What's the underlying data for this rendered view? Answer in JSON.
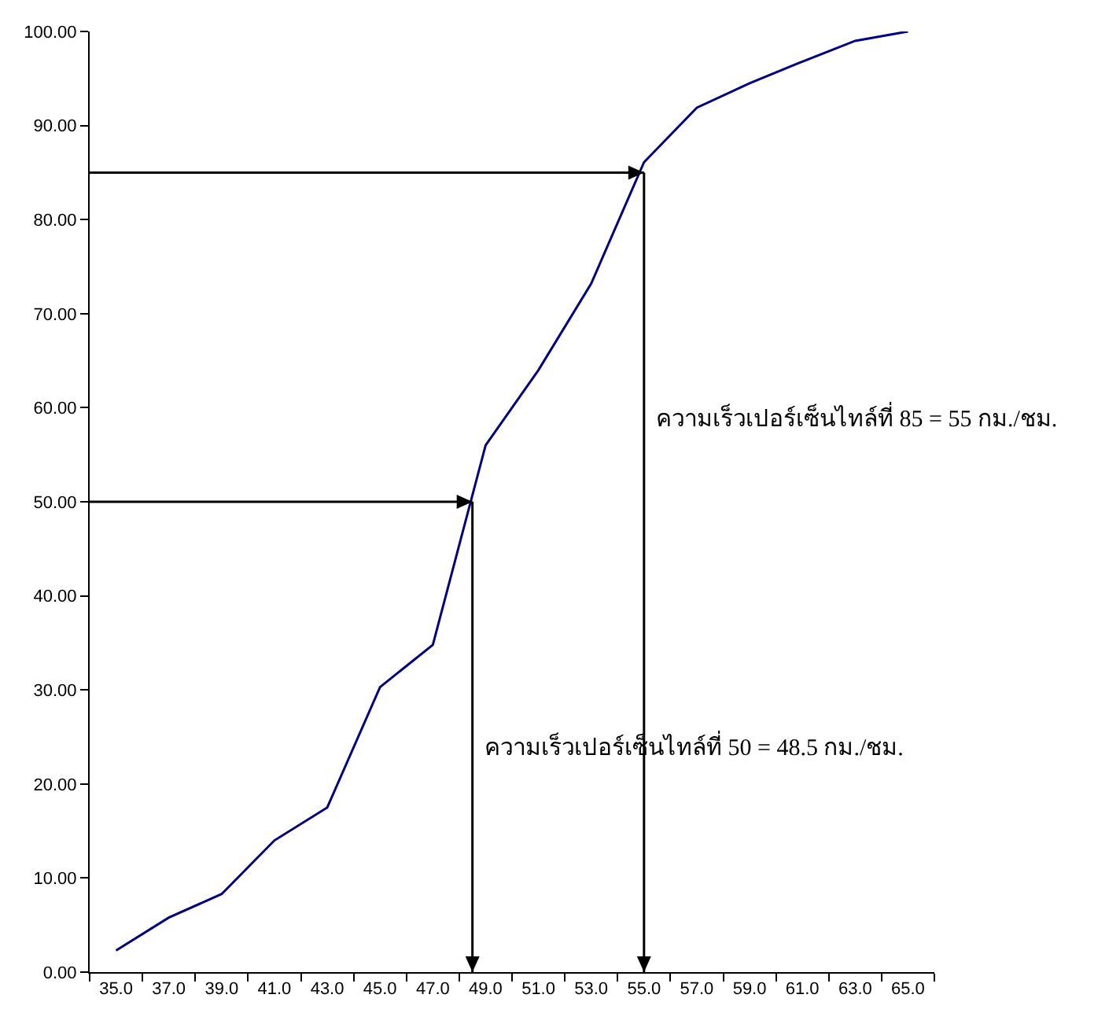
{
  "chart_data": {
    "type": "line",
    "x": [
      35,
      37,
      39,
      41,
      43,
      45,
      47,
      49,
      51,
      53,
      55,
      57,
      59,
      61,
      63,
      65
    ],
    "series": [
      {
        "color": "#000080",
        "values": [
          2.3,
          5.8,
          8.3,
          14.0,
          17.5,
          30.3,
          34.8,
          56.0,
          64.0,
          73.2,
          86.1,
          91.9,
          94.5,
          96.8,
          99.0,
          100
        ]
      }
    ],
    "ref_lines": [
      {
        "axis": "y",
        "value": 85,
        "color": "#000000"
      },
      {
        "axis": "x",
        "value": 55,
        "color": "#000000"
      },
      {
        "axis": "y",
        "value": 50,
        "color": "#000000"
      },
      {
        "axis": "x",
        "value": 48.5,
        "color": "#000000"
      }
    ],
    "xlim": [
      34,
      66
    ],
    "xticks": [
      {
        "value": 34,
        "label": null
      },
      {
        "value": 35,
        "label": "35.0"
      },
      {
        "value": 36,
        "label": null
      },
      {
        "value": 37,
        "label": "37.0"
      },
      {
        "value": 38,
        "label": null
      },
      {
        "value": 39,
        "label": "39.0"
      },
      {
        "value": 40,
        "label": null
      },
      {
        "value": 41,
        "label": "41.0"
      },
      {
        "value": 42,
        "label": null
      },
      {
        "value": 43,
        "label": "43.0"
      },
      {
        "value": 44,
        "label": null
      },
      {
        "value": 45,
        "label": "45.0"
      },
      {
        "value": 46,
        "label": null
      },
      {
        "value": 47,
        "label": "47.0"
      },
      {
        "value": 48,
        "label": null
      },
      {
        "value": 49,
        "label": "49.0"
      },
      {
        "value": 50,
        "label": null
      },
      {
        "value": 51,
        "label": "51.0"
      },
      {
        "value": 52,
        "label": null
      },
      {
        "value": 53,
        "label": "53.0"
      },
      {
        "value": 54,
        "label": null
      },
      {
        "value": 55,
        "label": "55.0"
      },
      {
        "value": 56,
        "label": null
      },
      {
        "value": 57,
        "label": "57.0"
      },
      {
        "value": 58,
        "label": null
      },
      {
        "value": 59,
        "label": "59.0"
      },
      {
        "value": 60,
        "label": null
      },
      {
        "value": 61,
        "label": "61.0"
      },
      {
        "value": 62,
        "label": null
      },
      {
        "value": 63,
        "label": "63.0"
      },
      {
        "value": 64,
        "label": null
      },
      {
        "value": 65,
        "label": "65.0"
      },
      {
        "value": 66,
        "label": null
      }
    ],
    "ylim": [
      0,
      100
    ],
    "yticks": [
      {
        "value": 0,
        "label": "0.00"
      },
      {
        "value": 10,
        "label": "10.00"
      },
      {
        "value": 20,
        "label": "20.00"
      },
      {
        "value": 30,
        "label": "30.00"
      },
      {
        "value": 40,
        "label": "40.00"
      },
      {
        "value": 50,
        "label": "50.00"
      },
      {
        "value": 60,
        "label": "60.00"
      },
      {
        "value": 70,
        "label": "70.00"
      },
      {
        "value": 80,
        "label": "80.00"
      },
      {
        "value": 90,
        "label": "90.00"
      },
      {
        "value": 100,
        "label": "100.00"
      }
    ],
    "grid": false,
    "marker": "none",
    "line_style": "solid",
    "annotations": [
      "ความเร็วเปอร์เซ็นไทล์ที่ 85 = 55 กม./ชม.",
      "ความเร็วเปอร์เซ็นไทล์ที่ 50 = 48.5 กม./ชม."
    ]
  }
}
